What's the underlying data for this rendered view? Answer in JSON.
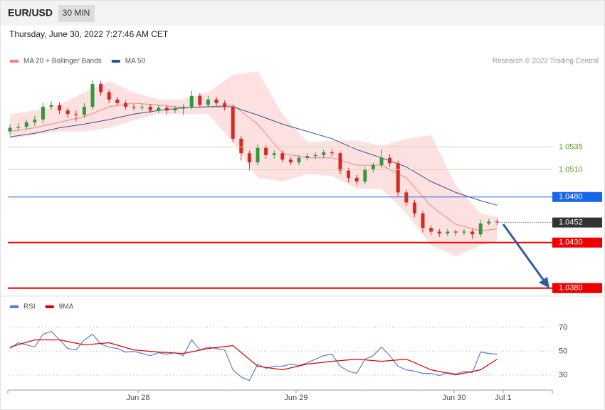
{
  "header": {
    "symbol": "EUR/USD",
    "interval": "30 MIN",
    "datetime": "Thursday, June 30, 2022 7:27:46 AM CET",
    "credit": "Research © 2022 Trading Central"
  },
  "chart_data": [
    {
      "type": "candlestick",
      "xlim": [
        -0.26,
        65.69
      ],
      "ylim": [
        1.0372,
        1.0622
      ],
      "up_color": "#2f9a3c",
      "down_color": "#d42a20",
      "open": [
        1.0552,
        1.0556,
        1.0557,
        1.0562,
        1.0565,
        1.0579,
        1.0581,
        1.0575,
        1.0571,
        1.057,
        1.0579,
        1.0604,
        1.0595,
        1.0587,
        1.0583,
        1.0579,
        1.0578,
        1.0579,
        1.0575,
        1.0578,
        1.0575,
        1.0577,
        1.0579,
        1.0591,
        1.0581,
        1.0587,
        1.0583,
        1.0579,
        1.0544,
        1.0528,
        1.0518,
        1.0534,
        1.0526,
        1.0528,
        1.0521,
        1.0518,
        1.0523,
        1.0525,
        1.0526,
        1.0529,
        1.0528,
        1.0509,
        1.0501,
        1.0497,
        1.051,
        1.0515,
        1.0523,
        1.0517,
        1.0485,
        1.0474,
        1.0462,
        1.0446,
        1.0442,
        1.044,
        1.0442,
        1.0441,
        1.0442,
        1.0439,
        1.0451,
        1.0453
      ],
      "high": [
        1.056,
        1.0561,
        1.0565,
        1.0569,
        1.0583,
        1.0585,
        1.0584,
        1.0578,
        1.0575,
        1.0583,
        1.0608,
        1.0607,
        1.0598,
        1.059,
        1.0586,
        1.0582,
        1.0582,
        1.0582,
        1.0581,
        1.0581,
        1.058,
        1.0582,
        1.0597,
        1.0594,
        1.0591,
        1.059,
        1.0586,
        1.0581,
        1.0547,
        1.0531,
        1.0538,
        1.0537,
        1.0531,
        1.0531,
        1.0524,
        1.0526,
        1.0528,
        1.0529,
        1.0532,
        1.0532,
        1.053,
        1.0512,
        1.0504,
        1.0513,
        1.0518,
        1.0532,
        1.0527,
        1.052,
        1.0488,
        1.0477,
        1.0465,
        1.0449,
        1.0445,
        1.0445,
        1.0444,
        1.0445,
        1.0445,
        1.0455,
        1.0456,
        1.0456
      ],
      "low": [
        1.0548,
        1.0553,
        1.0554,
        1.0558,
        1.0561,
        1.0576,
        1.0571,
        1.0567,
        1.0563,
        1.0567,
        1.0576,
        1.0591,
        1.0583,
        1.058,
        1.0576,
        1.0575,
        1.0575,
        1.0572,
        1.0572,
        1.0571,
        1.0572,
        1.057,
        1.0576,
        1.0578,
        1.0578,
        1.058,
        1.0575,
        1.054,
        1.052,
        1.0509,
        1.0515,
        1.0522,
        1.0522,
        1.0518,
        1.0515,
        1.0515,
        1.052,
        1.0522,
        1.0523,
        1.0525,
        1.0505,
        1.0496,
        1.0493,
        1.0494,
        1.0507,
        1.0512,
        1.0513,
        1.0481,
        1.047,
        1.0458,
        1.0441,
        1.0438,
        1.0436,
        1.0437,
        1.0437,
        1.0438,
        1.0434,
        1.0436,
        1.0449,
        1.0449
      ],
      "close": [
        1.0556,
        1.0557,
        1.0562,
        1.0565,
        1.0579,
        1.0581,
        1.0575,
        1.0571,
        1.057,
        1.0579,
        1.0604,
        1.0595,
        1.0587,
        1.0583,
        1.0579,
        1.0578,
        1.0579,
        1.0575,
        1.0578,
        1.0575,
        1.0577,
        1.0579,
        1.0591,
        1.0581,
        1.0587,
        1.0583,
        1.0579,
        1.0544,
        1.0528,
        1.0518,
        1.0534,
        1.0526,
        1.0528,
        1.0521,
        1.0518,
        1.0523,
        1.0525,
        1.0526,
        1.0529,
        1.0528,
        1.0509,
        1.0501,
        1.0497,
        1.051,
        1.0515,
        1.0523,
        1.0517,
        1.0485,
        1.0474,
        1.0462,
        1.0446,
        1.0442,
        1.044,
        1.0442,
        1.0441,
        1.0442,
        1.0439,
        1.0451,
        1.0453,
        1.0452
      ],
      "series": [
        {
          "name": "MA 20 + Bollinger Bands",
          "color": "#f4837d",
          "band_color": "#fde1e1",
          "x": [
            0,
            3,
            6,
            9,
            12,
            15,
            18,
            21,
            24,
            27,
            30,
            33,
            36,
            39,
            42,
            45,
            48,
            51,
            54,
            57,
            59
          ],
          "values": [
            1.0552,
            1.0556,
            1.0562,
            1.0568,
            1.0579,
            1.0583,
            1.0581,
            1.0578,
            1.0579,
            1.0581,
            1.056,
            1.0528,
            1.0523,
            1.0523,
            1.0515,
            1.0515,
            1.0501,
            1.047,
            1.045,
            1.0443,
            1.0445
          ],
          "upper": [
            1.0571,
            1.0575,
            1.0581,
            1.0595,
            1.0607,
            1.0595,
            1.0587,
            1.0587,
            1.0595,
            1.0614,
            1.0618,
            1.0571,
            1.054,
            1.0542,
            1.0542,
            1.0536,
            1.0544,
            1.0548,
            1.0493,
            1.0462,
            1.0458
          ],
          "lower": [
            1.0544,
            1.0548,
            1.0552,
            1.0552,
            1.0556,
            1.0564,
            1.0571,
            1.0571,
            1.0571,
            1.054,
            1.0501,
            1.0497,
            1.0505,
            1.0503,
            1.0489,
            1.0489,
            1.0462,
            1.0427,
            1.0415,
            1.0427,
            1.0431
          ]
        },
        {
          "name": "MA 50",
          "color": "#2f5597",
          "x": [
            0,
            3,
            6,
            9,
            12,
            15,
            18,
            21,
            24,
            27,
            30,
            33,
            36,
            39,
            42,
            45,
            48,
            51,
            54,
            57,
            59
          ],
          "values": [
            1.0546,
            1.055,
            1.0556,
            1.056,
            1.0565,
            1.0571,
            1.0575,
            1.0578,
            1.0579,
            1.0579,
            1.057,
            1.056,
            1.0552,
            1.0544,
            1.0532,
            1.0523,
            1.0513,
            1.0497,
            1.0485,
            1.0476,
            1.0471
          ]
        }
      ],
      "levels": [
        {
          "value": 1.0535,
          "color": "#5a9a2a",
          "kind": "text"
        },
        {
          "value": 1.051,
          "label": "1.0510",
          "color": "#5a9a2a",
          "kind": "text"
        },
        {
          "value": 1.048,
          "label": "1.0480",
          "color": "#1a66e8",
          "kind": "box"
        },
        {
          "value": 1.0452,
          "color": "#333333",
          "kind": "box",
          "dotted": true
        },
        {
          "value": 1.043,
          "label": "1.0430",
          "color": "#ee0000",
          "kind": "box"
        },
        {
          "value": 1.038,
          "label": "1.0380",
          "color": "#ee0000",
          "kind": "box"
        }
      ]
    },
    {
      "type": "line",
      "xlim": [
        -0.26,
        65.69
      ],
      "ylim": [
        17.5,
        82
      ],
      "yticks": [
        30,
        50,
        70
      ],
      "grid": true,
      "xticks": [
        {
          "value": 15.52,
          "label": "Jun 28"
        },
        {
          "value": 34.65,
          "label": "Jun 29"
        },
        {
          "value": 53.79,
          "label": "Jun 30"
        },
        {
          "value": 59.74,
          "label": "Jul 1"
        }
      ],
      "series": [
        {
          "name": "RSI",
          "color": "#5b7fd6",
          "values": [
            52.4,
            57.2,
            55.4,
            53.6,
            64.3,
            66.7,
            59.6,
            52.4,
            51.2,
            59.6,
            64.3,
            56,
            53.6,
            52.4,
            49.4,
            50,
            48.2,
            46.4,
            48.8,
            47.6,
            48.8,
            46.4,
            59.6,
            51.2,
            53.6,
            52.4,
            51.2,
            34.5,
            28.5,
            25.5,
            39.3,
            35.7,
            37.5,
            37.5,
            39.3,
            38.1,
            40.4,
            43.4,
            46.4,
            47.6,
            37.5,
            33.3,
            31.5,
            43.4,
            46.4,
            53.6,
            46.4,
            37.5,
            34.5,
            33.3,
            31.5,
            31.5,
            29.7,
            32.1,
            30.9,
            33.3,
            32.1,
            49.4,
            48.2,
            47.6
          ]
        },
        {
          "name": "9MA",
          "color": "#e00000",
          "x": [
            0,
            3,
            6,
            9,
            12,
            15,
            18,
            21,
            24,
            27,
            30,
            33,
            36,
            39,
            42,
            45,
            48,
            51,
            54,
            57,
            59
          ],
          "values": [
            53.6,
            59.6,
            59.6,
            55.4,
            57.2,
            51.2,
            49.4,
            48.2,
            52.4,
            54.8,
            37.5,
            34.5,
            39.3,
            41.6,
            43.4,
            41.6,
            43.4,
            34.5,
            30.3,
            34.5,
            43.4
          ]
        }
      ]
    }
  ]
}
